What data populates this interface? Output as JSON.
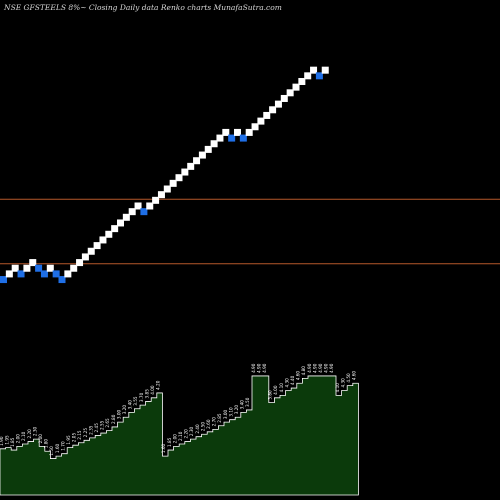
{
  "caption": "NSE GFSTEELS 8%~  Closing Daily data  Renko  charts MunafaSutra.com",
  "chart_data": {
    "type": "renko",
    "title": "NSE GFSTEELS 8%~  Closing Daily data  Renko  charts MunafaSutra.com",
    "price_range": [
      0,
      22
    ],
    "reference_lines": [
      {
        "name": "upper",
        "value": 13.2,
        "color": "#b5582a"
      },
      {
        "name": "lower",
        "value": 10.35,
        "color": "#b5582a"
      }
    ],
    "bricks": [
      {
        "level": 9.65,
        "dir": "down"
      },
      {
        "level": 9.9,
        "dir": "up"
      },
      {
        "level": 10.15,
        "dir": "up"
      },
      {
        "level": 9.9,
        "dir": "down"
      },
      {
        "level": 10.15,
        "dir": "up"
      },
      {
        "level": 10.4,
        "dir": "up"
      },
      {
        "level": 10.15,
        "dir": "down"
      },
      {
        "level": 9.9,
        "dir": "down"
      },
      {
        "level": 10.15,
        "dir": "up"
      },
      {
        "level": 9.9,
        "dir": "down"
      },
      {
        "level": 9.65,
        "dir": "down"
      },
      {
        "level": 9.9,
        "dir": "up"
      },
      {
        "level": 10.15,
        "dir": "up"
      },
      {
        "level": 10.4,
        "dir": "up"
      },
      {
        "level": 10.65,
        "dir": "up"
      },
      {
        "level": 10.9,
        "dir": "up"
      },
      {
        "level": 11.15,
        "dir": "up"
      },
      {
        "level": 11.4,
        "dir": "up"
      },
      {
        "level": 11.65,
        "dir": "up"
      },
      {
        "level": 11.9,
        "dir": "up"
      },
      {
        "level": 12.15,
        "dir": "up"
      },
      {
        "level": 12.4,
        "dir": "up"
      },
      {
        "level": 12.65,
        "dir": "up"
      },
      {
        "level": 12.9,
        "dir": "up"
      },
      {
        "level": 12.65,
        "dir": "down"
      },
      {
        "level": 12.9,
        "dir": "up"
      },
      {
        "level": 13.15,
        "dir": "up"
      },
      {
        "level": 13.4,
        "dir": "up"
      },
      {
        "level": 13.65,
        "dir": "up"
      },
      {
        "level": 13.9,
        "dir": "up"
      },
      {
        "level": 14.15,
        "dir": "up"
      },
      {
        "level": 14.4,
        "dir": "up"
      },
      {
        "level": 14.65,
        "dir": "up"
      },
      {
        "level": 14.9,
        "dir": "up"
      },
      {
        "level": 15.15,
        "dir": "up"
      },
      {
        "level": 15.4,
        "dir": "up"
      },
      {
        "level": 15.65,
        "dir": "up"
      },
      {
        "level": 15.9,
        "dir": "up"
      },
      {
        "level": 16.15,
        "dir": "up"
      },
      {
        "level": 15.9,
        "dir": "down"
      },
      {
        "level": 16.15,
        "dir": "up"
      },
      {
        "level": 15.9,
        "dir": "down"
      },
      {
        "level": 16.15,
        "dir": "up"
      },
      {
        "level": 16.4,
        "dir": "up"
      },
      {
        "level": 16.65,
        "dir": "up"
      },
      {
        "level": 16.9,
        "dir": "up"
      },
      {
        "level": 17.15,
        "dir": "up"
      },
      {
        "level": 17.4,
        "dir": "up"
      },
      {
        "level": 17.65,
        "dir": "up"
      },
      {
        "level": 17.9,
        "dir": "up"
      },
      {
        "level": 18.15,
        "dir": "up"
      },
      {
        "level": 18.4,
        "dir": "up"
      },
      {
        "level": 18.65,
        "dir": "up"
      },
      {
        "level": 18.9,
        "dir": "up"
      },
      {
        "level": 18.65,
        "dir": "down"
      },
      {
        "level": 18.9,
        "dir": "up"
      }
    ],
    "volume_series": {
      "name": "Volume",
      "color": "#0b3a0b",
      "values": [
        1.9,
        1.95,
        1.85,
        2.0,
        2.1,
        2.2,
        2.3,
        2.0,
        1.8,
        1.5,
        1.6,
        1.7,
        1.95,
        2.05,
        2.15,
        2.25,
        2.35,
        2.45,
        2.55,
        2.65,
        2.8,
        3.0,
        3.2,
        3.4,
        3.55,
        3.7,
        3.85,
        4.0,
        4.2,
        1.6,
        1.85,
        2.0,
        2.1,
        2.2,
        2.3,
        2.4,
        2.5,
        2.6,
        2.7,
        2.85,
        3.0,
        3.1,
        3.2,
        3.4,
        3.5,
        4.9,
        4.9,
        4.9,
        3.8,
        4.0,
        4.1,
        4.3,
        4.4,
        4.6,
        4.8,
        4.9,
        4.9,
        4.9,
        4.9,
        4.9,
        4.1,
        4.3,
        4.5,
        4.6
      ],
      "labels": [
        "1.90",
        "1.95",
        "1.85",
        "2.00",
        "2.10",
        "2.20",
        "2.30",
        "2.00",
        "1.80",
        "1.50",
        "1.60",
        "1.70",
        "1.95",
        "2.05",
        "2.15",
        "2.25",
        "2.35",
        "2.45",
        "2.55",
        "2.65",
        "2.80",
        "3.00",
        "3.20",
        "3.40",
        "3.55",
        "3.70",
        "3.85",
        "4.00",
        "4.20",
        "1.60",
        "1.85",
        "2.00",
        "2.10",
        "2.20",
        "2.30",
        "2.40",
        "2.50",
        "2.60",
        "2.70",
        "2.85",
        "3.00",
        "3.10",
        "3.20",
        "3.40",
        "3.50",
        "4.90",
        "4.90",
        "4.90",
        "3.80",
        "4.00",
        "4.10",
        "4.30",
        "4.40",
        "4.60",
        "4.80",
        "4.90",
        "4.90",
        "4.90",
        "4.90",
        "4.90",
        "4.10",
        "4.30",
        "4.50",
        "4.60"
      ]
    },
    "colors": {
      "up": "#ffffff",
      "down": "#1f6fe6",
      "background": "#000000",
      "volume_outline": "#ffffff"
    }
  }
}
